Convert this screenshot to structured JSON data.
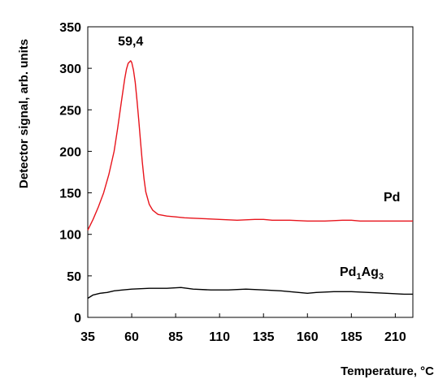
{
  "chart_data": {
    "type": "line",
    "title": "",
    "xlabel": "Temperature, °C",
    "ylabel": "Detector signal, arb. units",
    "xlim": [
      35,
      220
    ],
    "ylim": [
      0,
      350
    ],
    "xticks": [
      35,
      60,
      85,
      110,
      135,
      160,
      185,
      210
    ],
    "yticks": [
      0,
      50,
      100,
      150,
      200,
      250,
      300,
      350
    ],
    "grid": false,
    "legend": "none",
    "series": [
      {
        "name": "Pd",
        "color": "#e8141c",
        "x": [
          35,
          38,
          41,
          44,
          47,
          50,
          52,
          54,
          56,
          57,
          58,
          59.4,
          60,
          61,
          62,
          63,
          64,
          65,
          66,
          67,
          68,
          70,
          72,
          75,
          80,
          85,
          90,
          100,
          110,
          120,
          130,
          135,
          140,
          150,
          160,
          170,
          180,
          185,
          190,
          200,
          210,
          220
        ],
        "y": [
          105,
          118,
          133,
          150,
          172,
          200,
          228,
          258,
          287,
          299,
          306,
          309,
          307,
          298,
          283,
          262,
          238,
          212,
          188,
          167,
          151,
          136,
          129,
          124,
          122,
          121,
          120,
          119,
          118,
          117,
          118,
          118,
          117,
          117,
          116,
          116,
          117,
          117,
          116,
          116,
          116,
          116
        ]
      },
      {
        "name": "Pd<sub>1</sub>Ag<sub>3</sub>",
        "label_base": "Pd",
        "label_sub1": "1",
        "label_mid": "Ag",
        "label_sub2": "3",
        "color": "#000000",
        "x": [
          35,
          38,
          42,
          46,
          50,
          55,
          60,
          70,
          80,
          88,
          95,
          105,
          115,
          125,
          135,
          145,
          155,
          160,
          165,
          175,
          185,
          195,
          205,
          215,
          220
        ],
        "y": [
          23,
          27,
          29,
          30,
          32,
          33,
          34,
          35,
          35,
          36,
          34,
          33,
          33,
          34,
          33,
          32,
          30,
          29,
          30,
          31,
          31,
          30,
          29,
          28,
          28
        ]
      }
    ],
    "annotations": [
      {
        "text": "59,4",
        "x": 59.4,
        "y": 309
      }
    ]
  }
}
